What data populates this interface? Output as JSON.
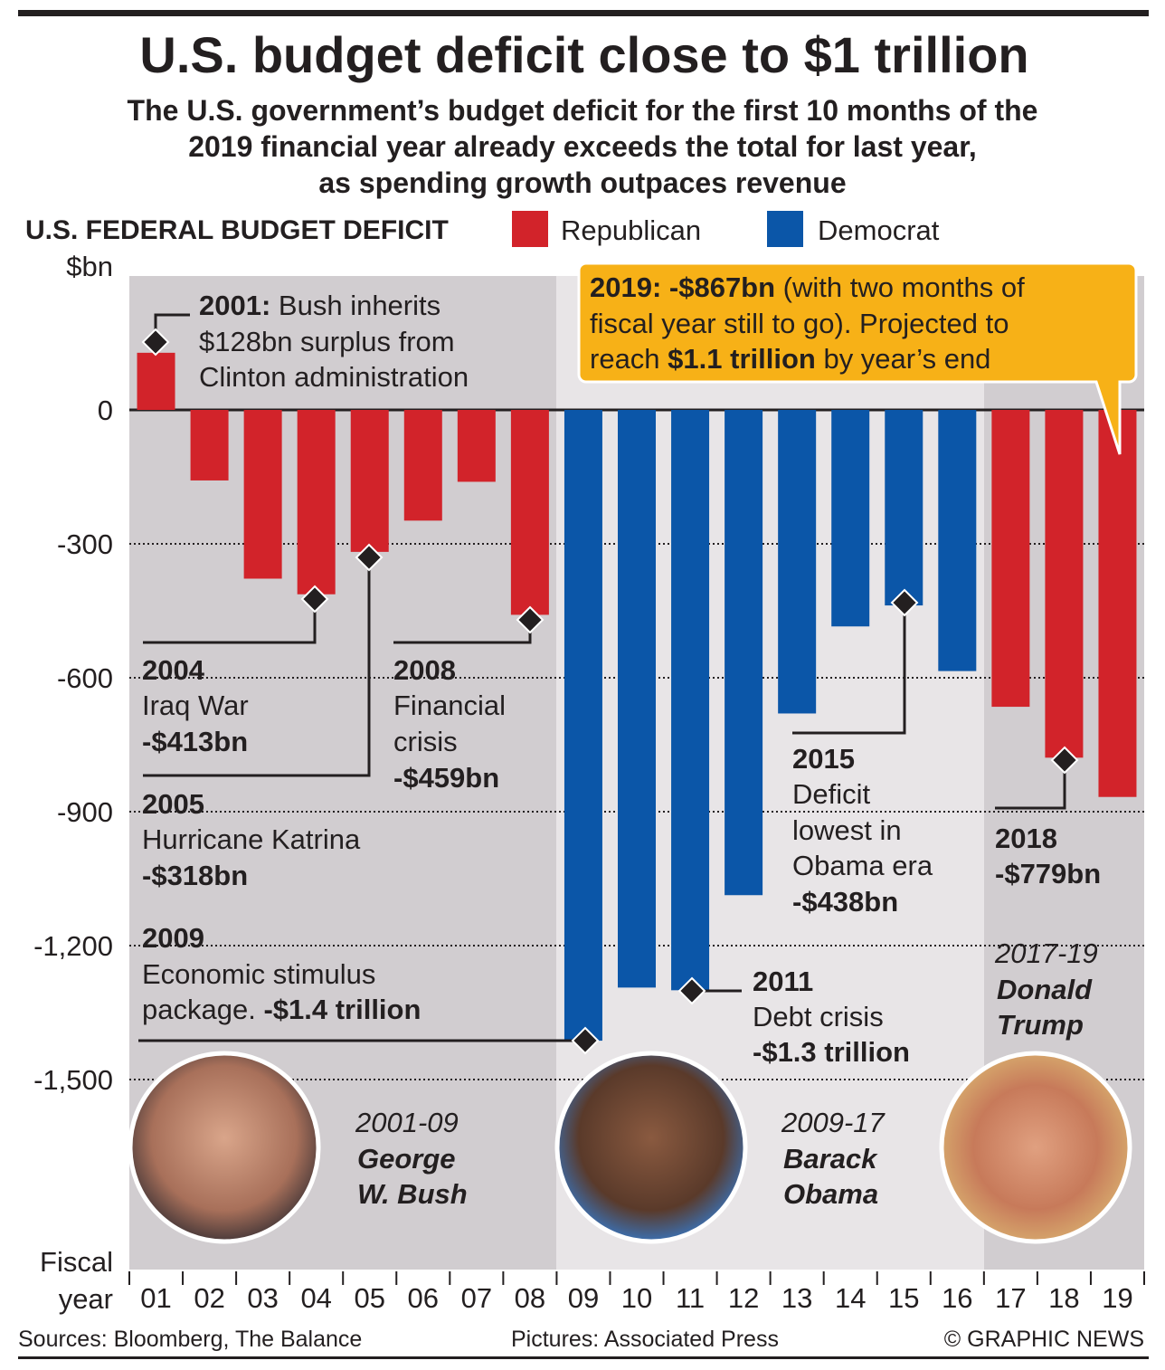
{
  "chart_data": {
    "type": "bar",
    "title": "U.S. budget deficit close to $1 trillion",
    "subtitle": [
      "The U.S. government’s budget deficit for the first 10 months of the",
      "2019 financial year already exceeds the total for last year,",
      "as spending growth outpaces revenue"
    ],
    "section_label": "U.S. FEDERAL BUDGET DEFICIT",
    "ylabel": "$bn",
    "xlabel": [
      "Fiscal",
      "year"
    ],
    "ylim": [
      -1500,
      300
    ],
    "yticks": [
      0,
      -300,
      -600,
      -900,
      -1200,
      -1500
    ],
    "ytick_labels": [
      "0",
      "-300",
      "-600",
      "-900",
      "-1,200",
      "-1,500"
    ],
    "categories": [
      "01",
      "02",
      "03",
      "04",
      "05",
      "06",
      "07",
      "08",
      "09",
      "10",
      "11",
      "12",
      "13",
      "14",
      "15",
      "16",
      "17",
      "18",
      "19"
    ],
    "values": [
      128,
      -158,
      -378,
      -413,
      -318,
      -248,
      -161,
      -459,
      -1413,
      -1294,
      -1300,
      -1087,
      -680,
      -485,
      -438,
      -585,
      -665,
      -779,
      -867
    ],
    "party": [
      "R",
      "R",
      "R",
      "R",
      "R",
      "R",
      "R",
      "R",
      "D",
      "D",
      "D",
      "D",
      "D",
      "D",
      "D",
      "D",
      "R",
      "R",
      "R"
    ],
    "legend": [
      {
        "name": "Republican",
        "color": "#d2232a"
      },
      {
        "name": "Democrat",
        "color": "#0b56a8"
      }
    ],
    "grid": "dotted horizontal",
    "colors": {
      "R": "#d2232a",
      "D": "#0b56a8",
      "bg_bush": "#d1cdd0",
      "bg_obama": "#e8e5e7",
      "bg_trump": "#d1cdd0",
      "callout": "#f7b117"
    }
  },
  "annotations": {
    "a2001": {
      "year": "2001:",
      "l1": "Bush inherits",
      "l2": "$128bn surplus from",
      "l3": "Clinton administration"
    },
    "a2019": {
      "bold1": "2019: -$867bn",
      "rest1": " (with two months of",
      "l2": "fiscal year still to go). Projected to",
      "pre3": "reach ",
      "bold3": "$1.1 trillion",
      "rest3": " by year’s end"
    },
    "a2004": {
      "year": "2004",
      "l1": "Iraq War",
      "l2": "-$413bn"
    },
    "a2008": {
      "year": "2008",
      "l1": "Financial",
      "l2": "crisis",
      "l3": "-$459bn"
    },
    "a2005": {
      "year": "2005",
      "l1": "Hurricane Katrina",
      "l2": "-$318bn"
    },
    "a2009": {
      "year": "2009",
      "l1": "Economic stimulus",
      "pre2": "package. ",
      "bold2": "-$1.4 trillion"
    },
    "a2011": {
      "year": "2011",
      "l1": "Debt crisis",
      "l2": "-$1.3 trillion"
    },
    "a2015": {
      "year": "2015",
      "l1": "Deficit",
      "l2": "lowest in",
      "l3": "Obama era",
      "l4": "-$438bn"
    },
    "a2018": {
      "year": "2018",
      "l1": "-$779bn"
    }
  },
  "presidents": [
    {
      "years": "2001-09",
      "name1": "George",
      "name2": "W. Bush"
    },
    {
      "years": "2009-17",
      "name1": "Barack",
      "name2": "Obama"
    },
    {
      "years": "2017-19",
      "name1": "Donald",
      "name2": "Trump"
    }
  ],
  "footer": {
    "sources": "Sources: Bloomberg, The Balance",
    "pictures": "Pictures: Associated Press",
    "credit": "© GRAPHIC NEWS"
  }
}
